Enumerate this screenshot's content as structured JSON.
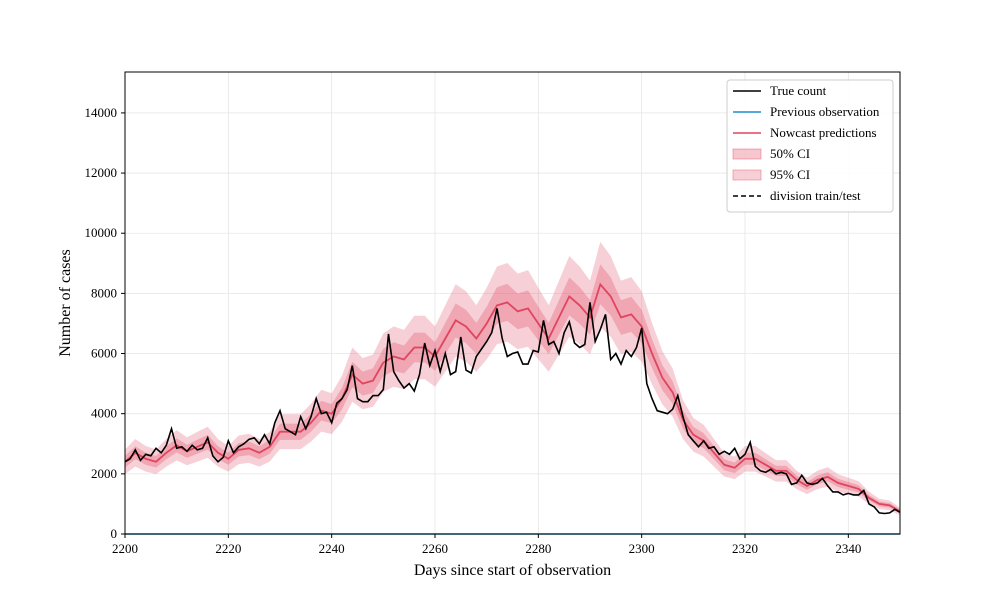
{
  "chart_data": {
    "type": "line",
    "title": "",
    "xlabel": "Days since start of observation",
    "ylabel": "Number of cases",
    "xlim": [
      2200,
      2350
    ],
    "ylim": [
      0,
      15360
    ],
    "xticks": [
      2200,
      2220,
      2240,
      2260,
      2280,
      2300,
      2320,
      2340
    ],
    "yticks": [
      0,
      2000,
      4000,
      6000,
      8000,
      10000,
      12000,
      14000
    ],
    "grid": true,
    "legend_position": "top-right",
    "legend": [
      {
        "label": "True count",
        "kind": "line",
        "color": "#000000",
        "dash": "solid"
      },
      {
        "label": "Previous observation",
        "kind": "line",
        "color": "#1f8fcf",
        "dash": "solid"
      },
      {
        "label": "Nowcast predictions",
        "kind": "line",
        "color": "#e0455f",
        "dash": "solid"
      },
      {
        "label": "50% CI",
        "kind": "patch",
        "color": "#e0455f",
        "opacity": 0.3
      },
      {
        "label": "95% CI",
        "kind": "patch",
        "color": "#e0455f",
        "opacity": 0.25
      },
      {
        "label": "division train/test",
        "kind": "line",
        "color": "#000000",
        "dash": "dashed"
      }
    ],
    "true_count": {
      "name": "True count",
      "color": "#000000",
      "points": [
        [
          2200,
          2400
        ],
        [
          2201,
          2500
        ],
        [
          2202,
          2800
        ],
        [
          2203,
          2450
        ],
        [
          2204,
          2650
        ],
        [
          2205,
          2600
        ],
        [
          2206,
          2850
        ],
        [
          2207,
          2700
        ],
        [
          2208,
          2950
        ],
        [
          2209,
          3500
        ],
        [
          2210,
          2850
        ],
        [
          2211,
          2900
        ],
        [
          2212,
          2750
        ],
        [
          2213,
          2950
        ],
        [
          2214,
          2800
        ],
        [
          2215,
          2850
        ],
        [
          2216,
          3200
        ],
        [
          2217,
          2600
        ],
        [
          2218,
          2400
        ],
        [
          2219,
          2550
        ],
        [
          2220,
          3100
        ],
        [
          2221,
          2700
        ],
        [
          2222,
          2900
        ],
        [
          2223,
          3000
        ],
        [
          2224,
          3150
        ],
        [
          2225,
          3200
        ],
        [
          2226,
          3000
        ],
        [
          2227,
          3300
        ],
        [
          2228,
          3000
        ],
        [
          2229,
          3700
        ],
        [
          2230,
          4100
        ],
        [
          2231,
          3500
        ],
        [
          2232,
          3400
        ],
        [
          2233,
          3300
        ],
        [
          2234,
          3900
        ],
        [
          2235,
          3500
        ],
        [
          2236,
          3900
        ],
        [
          2237,
          4500
        ],
        [
          2238,
          4000
        ],
        [
          2239,
          4050
        ],
        [
          2240,
          3700
        ],
        [
          2241,
          4350
        ],
        [
          2242,
          4500
        ],
        [
          2243,
          4800
        ],
        [
          2244,
          5600
        ],
        [
          2245,
          4500
        ],
        [
          2246,
          4400
        ],
        [
          2247,
          4400
        ],
        [
          2248,
          4600
        ],
        [
          2249,
          4600
        ],
        [
          2250,
          4800
        ],
        [
          2251,
          6650
        ],
        [
          2252,
          5400
        ],
        [
          2253,
          5100
        ],
        [
          2254,
          4850
        ],
        [
          2255,
          5000
        ],
        [
          2256,
          4750
        ],
        [
          2257,
          5300
        ],
        [
          2258,
          6350
        ],
        [
          2259,
          5600
        ],
        [
          2260,
          6100
        ],
        [
          2261,
          5400
        ],
        [
          2262,
          6000
        ],
        [
          2263,
          5300
        ],
        [
          2264,
          5400
        ],
        [
          2265,
          6550
        ],
        [
          2266,
          5450
        ],
        [
          2267,
          5350
        ],
        [
          2268,
          5900
        ],
        [
          2269,
          6150
        ],
        [
          2270,
          6400
        ],
        [
          2271,
          6700
        ],
        [
          2272,
          7500
        ],
        [
          2273,
          6500
        ],
        [
          2274,
          5900
        ],
        [
          2275,
          6000
        ],
        [
          2276,
          6050
        ],
        [
          2277,
          5650
        ],
        [
          2278,
          5650
        ],
        [
          2279,
          6100
        ],
        [
          2280,
          6050
        ],
        [
          2281,
          7100
        ],
        [
          2282,
          6300
        ],
        [
          2283,
          6400
        ],
        [
          2284,
          6000
        ],
        [
          2285,
          6700
        ],
        [
          2286,
          7050
        ],
        [
          2287,
          6350
        ],
        [
          2288,
          6200
        ],
        [
          2289,
          6300
        ],
        [
          2290,
          7700
        ],
        [
          2291,
          6400
        ],
        [
          2292,
          6800
        ],
        [
          2293,
          7300
        ],
        [
          2294,
          5800
        ],
        [
          2295,
          6000
        ],
        [
          2296,
          5650
        ],
        [
          2297,
          6100
        ],
        [
          2298,
          5900
        ],
        [
          2299,
          6200
        ],
        [
          2300,
          6850
        ],
        [
          2301,
          5000
        ],
        [
          2302,
          4500
        ],
        [
          2303,
          4100
        ],
        [
          2304,
          4050
        ],
        [
          2305,
          4000
        ],
        [
          2306,
          4150
        ],
        [
          2307,
          4600
        ],
        [
          2308,
          3900
        ],
        [
          2309,
          3300
        ],
        [
          2310,
          3100
        ],
        [
          2311,
          2900
        ],
        [
          2312,
          3100
        ],
        [
          2313,
          2850
        ],
        [
          2314,
          2900
        ],
        [
          2315,
          2650
        ],
        [
          2316,
          2750
        ],
        [
          2317,
          2650
        ],
        [
          2318,
          2850
        ],
        [
          2319,
          2500
        ],
        [
          2320,
          2650
        ],
        [
          2321,
          3050
        ],
        [
          2322,
          2250
        ],
        [
          2323,
          2100
        ],
        [
          2324,
          2050
        ],
        [
          2325,
          2150
        ],
        [
          2326,
          2000
        ],
        [
          2327,
          2050
        ],
        [
          2328,
          2000
        ],
        [
          2329,
          1650
        ],
        [
          2330,
          1700
        ],
        [
          2331,
          1950
        ],
        [
          2332,
          1700
        ],
        [
          2333,
          1650
        ],
        [
          2334,
          1700
        ],
        [
          2335,
          1850
        ],
        [
          2336,
          1600
        ],
        [
          2337,
          1400
        ],
        [
          2338,
          1400
        ],
        [
          2339,
          1300
        ],
        [
          2340,
          1350
        ],
        [
          2341,
          1300
        ],
        [
          2342,
          1300
        ],
        [
          2343,
          1450
        ],
        [
          2344,
          1000
        ],
        [
          2345,
          900
        ],
        [
          2346,
          700
        ],
        [
          2347,
          680
        ],
        [
          2348,
          700
        ],
        [
          2349,
          820
        ],
        [
          2350,
          720
        ]
      ]
    },
    "previous_observation": {
      "name": "Previous observation",
      "color": "#1f8fcf",
      "points": [
        [
          2200,
          0
        ],
        [
          2350,
          0
        ]
      ]
    },
    "nowcast": {
      "name": "Nowcast predictions",
      "color": "#e0455f",
      "points": [
        [
          2200,
          2400
        ],
        [
          2202,
          2700
        ],
        [
          2204,
          2500
        ],
        [
          2206,
          2400
        ],
        [
          2208,
          2700
        ],
        [
          2210,
          2950
        ],
        [
          2212,
          2750
        ],
        [
          2214,
          2900
        ],
        [
          2216,
          3050
        ],
        [
          2218,
          2700
        ],
        [
          2220,
          2500
        ],
        [
          2222,
          2800
        ],
        [
          2224,
          2850
        ],
        [
          2226,
          2700
        ],
        [
          2228,
          2900
        ],
        [
          2230,
          3400
        ],
        [
          2232,
          3400
        ],
        [
          2234,
          3400
        ],
        [
          2236,
          3700
        ],
        [
          2238,
          4100
        ],
        [
          2240,
          4000
        ],
        [
          2242,
          4500
        ],
        [
          2244,
          5300
        ],
        [
          2246,
          5000
        ],
        [
          2248,
          5100
        ],
        [
          2250,
          5700
        ],
        [
          2252,
          5900
        ],
        [
          2254,
          5800
        ],
        [
          2256,
          6200
        ],
        [
          2258,
          6200
        ],
        [
          2260,
          5900
        ],
        [
          2262,
          6500
        ],
        [
          2264,
          7100
        ],
        [
          2266,
          6900
        ],
        [
          2268,
          6500
        ],
        [
          2270,
          7000
        ],
        [
          2272,
          7600
        ],
        [
          2274,
          7700
        ],
        [
          2276,
          7400
        ],
        [
          2278,
          7500
        ],
        [
          2280,
          7000
        ],
        [
          2282,
          6500
        ],
        [
          2284,
          7200
        ],
        [
          2286,
          7900
        ],
        [
          2288,
          7600
        ],
        [
          2290,
          7200
        ],
        [
          2292,
          8300
        ],
        [
          2294,
          7900
        ],
        [
          2296,
          7200
        ],
        [
          2298,
          7300
        ],
        [
          2300,
          6900
        ],
        [
          2302,
          6000
        ],
        [
          2304,
          5200
        ],
        [
          2306,
          4700
        ],
        [
          2308,
          3800
        ],
        [
          2310,
          3300
        ],
        [
          2312,
          3100
        ],
        [
          2314,
          2700
        ],
        [
          2316,
          2300
        ],
        [
          2318,
          2200
        ],
        [
          2320,
          2500
        ],
        [
          2322,
          2500
        ],
        [
          2324,
          2300
        ],
        [
          2326,
          2100
        ],
        [
          2328,
          2100
        ],
        [
          2330,
          1800
        ],
        [
          2332,
          1600
        ],
        [
          2334,
          1800
        ],
        [
          2336,
          1900
        ],
        [
          2338,
          1700
        ],
        [
          2340,
          1600
        ],
        [
          2342,
          1500
        ],
        [
          2344,
          1200
        ],
        [
          2346,
          1000
        ],
        [
          2348,
          950
        ],
        [
          2350,
          750
        ]
      ]
    },
    "ci50_halfwidth_fraction": 0.08,
    "ci95_halfwidth_fraction": 0.17
  }
}
